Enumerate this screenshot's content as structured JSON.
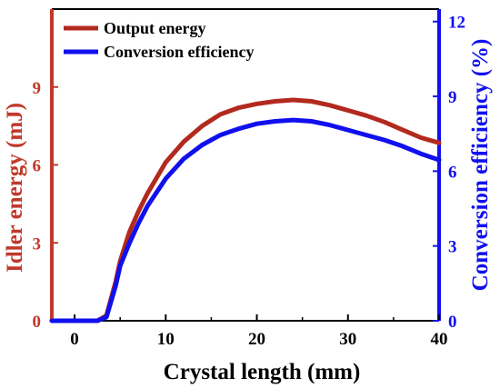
{
  "chart_data": {
    "type": "line",
    "xlabel": "Crystal length (mm)",
    "ylabel_left": "Idler energy (mJ)",
    "ylabel_right": "Conversion efficiency (%)",
    "xlim": [
      -2.5,
      40
    ],
    "ylim_left": [
      0,
      12
    ],
    "ylim_right": [
      0,
      12.5
    ],
    "x_ticks": [
      0,
      10,
      20,
      30,
      40
    ],
    "y_ticks_left": [
      0,
      3,
      6,
      9
    ],
    "y_ticks_right": [
      0,
      3,
      6,
      9,
      12
    ],
    "legend_position": "top-left",
    "grid": false,
    "colors": {
      "left_axis": "#c0392b",
      "right_axis": "#1010ee",
      "energy": "#b22a1e",
      "efficiency": "#1010ee"
    },
    "series": [
      {
        "name": "Output energy",
        "axis": "left",
        "x": [
          -2.5,
          2.5,
          3.5,
          4.5,
          5,
          6,
          7,
          8,
          10,
          12,
          14,
          16,
          18,
          20,
          22,
          24,
          26,
          28,
          30,
          32,
          34,
          36,
          38,
          40
        ],
        "y": [
          0,
          0,
          0.2,
          1.5,
          2.3,
          3.4,
          4.2,
          4.9,
          6.1,
          6.9,
          7.5,
          7.95,
          8.2,
          8.35,
          8.45,
          8.5,
          8.45,
          8.3,
          8.1,
          7.9,
          7.65,
          7.35,
          7.05,
          6.85
        ]
      },
      {
        "name": "Conversion efficiency",
        "axis": "right",
        "x": [
          -2.5,
          2.5,
          3.5,
          4.5,
          5,
          6,
          7,
          8,
          10,
          12,
          14,
          16,
          18,
          20,
          22,
          24,
          26,
          28,
          30,
          32,
          34,
          36,
          38,
          40
        ],
        "y": [
          0,
          0,
          0.15,
          1.4,
          2.2,
          3.1,
          3.9,
          4.6,
          5.7,
          6.5,
          7.05,
          7.45,
          7.7,
          7.9,
          8.0,
          8.05,
          8.0,
          7.85,
          7.65,
          7.45,
          7.25,
          7.0,
          6.7,
          6.45
        ]
      }
    ]
  }
}
